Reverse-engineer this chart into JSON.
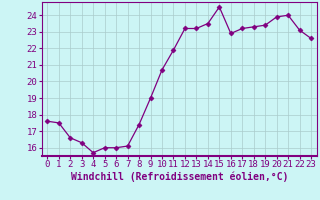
{
  "x": [
    0,
    1,
    2,
    3,
    4,
    5,
    6,
    7,
    8,
    9,
    10,
    11,
    12,
    13,
    14,
    15,
    16,
    17,
    18,
    19,
    20,
    21,
    22,
    23
  ],
  "y": [
    17.6,
    17.5,
    16.6,
    16.3,
    15.7,
    16.0,
    16.0,
    16.1,
    17.4,
    19.0,
    20.7,
    21.9,
    23.2,
    23.2,
    23.5,
    24.5,
    22.9,
    23.2,
    23.3,
    23.4,
    23.9,
    24.0,
    23.1,
    22.6
  ],
  "line_color": "#800080",
  "marker": "D",
  "marker_size": 2.5,
  "bg_color": "#ccf5f5",
  "grid_color": "#aacccc",
  "xlabel": "Windchill (Refroidissement éolien,°C)",
  "xlabel_color": "#800080",
  "tick_color": "#800080",
  "ylim": [
    15.5,
    24.8
  ],
  "xlim": [
    -0.5,
    23.5
  ],
  "yticks": [
    16,
    17,
    18,
    19,
    20,
    21,
    22,
    23,
    24
  ],
  "xticks": [
    0,
    1,
    2,
    3,
    4,
    5,
    6,
    7,
    8,
    9,
    10,
    11,
    12,
    13,
    14,
    15,
    16,
    17,
    18,
    19,
    20,
    21,
    22,
    23
  ],
  "tick_fontsize": 6.5,
  "xlabel_fontsize": 7.0
}
